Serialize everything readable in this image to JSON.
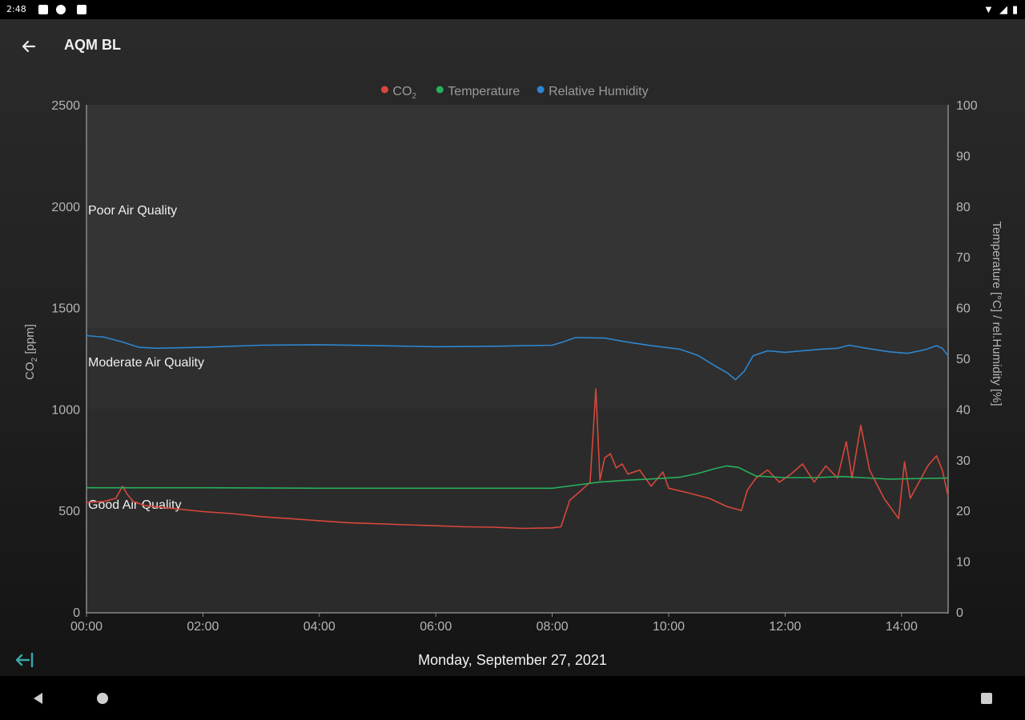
{
  "status_bar": {
    "time": "2:48"
  },
  "header": {
    "title": "AQM BL"
  },
  "footer": {
    "date": "Monday, September 27, 2021"
  },
  "chart_data": {
    "type": "line",
    "title": "",
    "legend": [
      {
        "name": "CO",
        "sub": "2",
        "color": "#d7473b"
      },
      {
        "name": "Temperature",
        "color": "#27b05b"
      },
      {
        "name": "Relative Humidity",
        "color": "#2e86d0"
      }
    ],
    "legend_position": "top-center",
    "xlabel": "",
    "x_ticks": [
      "00:00",
      "02:00",
      "04:00",
      "06:00",
      "08:00",
      "10:00",
      "12:00",
      "14:00"
    ],
    "xlim": [
      0,
      14.8
    ],
    "y_left": {
      "label": "CO",
      "label_sub": "2",
      "label_suffix": " [ppm]",
      "lim": [
        0,
        2500
      ],
      "ticks": [
        0,
        500,
        1000,
        1500,
        2000,
        2500
      ]
    },
    "y_right": {
      "label": "Temperature [°C] / rel.Humidity [%]",
      "lim": [
        0,
        100
      ],
      "ticks": [
        0,
        10,
        20,
        30,
        40,
        50,
        60,
        70,
        80,
        90,
        100
      ]
    },
    "zones": [
      {
        "label": "Good Air Quality",
        "from": 0,
        "to": 1000,
        "fill": "#2b2b2b"
      },
      {
        "label": "Moderate Air Quality",
        "from": 1000,
        "to": 1400,
        "fill": "#2f2f2f"
      },
      {
        "label": "Poor Air Quality",
        "from": 1400,
        "to": 2500,
        "fill": "#343434"
      }
    ],
    "grid": false,
    "series": [
      {
        "name": "CO2",
        "axis": "left",
        "color": "#d7473b",
        "points": [
          [
            0,
            540
          ],
          [
            0.3,
            545
          ],
          [
            0.5,
            560
          ],
          [
            0.58,
            600
          ],
          [
            0.62,
            620
          ],
          [
            0.7,
            580
          ],
          [
            0.8,
            545
          ],
          [
            1.0,
            525
          ],
          [
            1.5,
            510
          ],
          [
            2,
            495
          ],
          [
            2.5,
            485
          ],
          [
            3,
            470
          ],
          [
            3.5,
            460
          ],
          [
            4,
            450
          ],
          [
            4.5,
            440
          ],
          [
            5,
            435
          ],
          [
            5.5,
            430
          ],
          [
            6,
            425
          ],
          [
            6.5,
            420
          ],
          [
            7,
            418
          ],
          [
            7.5,
            412
          ],
          [
            8,
            415
          ],
          [
            8.15,
            420
          ],
          [
            8.3,
            550
          ],
          [
            8.5,
            600
          ],
          [
            8.65,
            640
          ],
          [
            8.75,
            1100
          ],
          [
            8.82,
            650
          ],
          [
            8.9,
            760
          ],
          [
            9.0,
            780
          ],
          [
            9.1,
            710
          ],
          [
            9.2,
            730
          ],
          [
            9.3,
            680
          ],
          [
            9.5,
            700
          ],
          [
            9.7,
            620
          ],
          [
            9.9,
            690
          ],
          [
            10.0,
            610
          ],
          [
            10.3,
            590
          ],
          [
            10.7,
            560
          ],
          [
            11.0,
            520
          ],
          [
            11.25,
            500
          ],
          [
            11.35,
            600
          ],
          [
            11.5,
            660
          ],
          [
            11.7,
            700
          ],
          [
            11.9,
            640
          ],
          [
            12.1,
            680
          ],
          [
            12.3,
            730
          ],
          [
            12.5,
            640
          ],
          [
            12.7,
            720
          ],
          [
            12.9,
            660
          ],
          [
            13.05,
            840
          ],
          [
            13.15,
            660
          ],
          [
            13.3,
            920
          ],
          [
            13.45,
            700
          ],
          [
            13.7,
            560
          ],
          [
            13.95,
            460
          ],
          [
            14.05,
            740
          ],
          [
            14.15,
            560
          ],
          [
            14.45,
            720
          ],
          [
            14.6,
            770
          ],
          [
            14.7,
            700
          ],
          [
            14.8,
            570
          ]
        ]
      },
      {
        "name": "Temperature",
        "axis": "right",
        "color": "#27b05b",
        "points": [
          [
            0,
            24.5
          ],
          [
            2,
            24.5
          ],
          [
            4,
            24.4
          ],
          [
            6,
            24.4
          ],
          [
            8,
            24.4
          ],
          [
            8.4,
            25.0
          ],
          [
            8.8,
            25.6
          ],
          [
            9.3,
            26.0
          ],
          [
            9.8,
            26.3
          ],
          [
            10.2,
            26.6
          ],
          [
            10.5,
            27.3
          ],
          [
            10.8,
            28.3
          ],
          [
            11.0,
            28.8
          ],
          [
            11.2,
            28.5
          ],
          [
            11.5,
            26.8
          ],
          [
            12,
            26.5
          ],
          [
            12.5,
            26.5
          ],
          [
            13,
            26.7
          ],
          [
            13.3,
            26.5
          ],
          [
            13.8,
            26.2
          ],
          [
            14.2,
            26.3
          ],
          [
            14.8,
            26.4
          ]
        ]
      },
      {
        "name": "Relative Humidity",
        "axis": "right",
        "color": "#2e86d0",
        "points": [
          [
            0,
            54.5
          ],
          [
            0.3,
            54.2
          ],
          [
            0.6,
            53.3
          ],
          [
            0.9,
            52.2
          ],
          [
            1.2,
            52.0
          ],
          [
            2,
            52.2
          ],
          [
            3,
            52.6
          ],
          [
            4,
            52.7
          ],
          [
            5,
            52.5
          ],
          [
            6,
            52.3
          ],
          [
            7,
            52.4
          ],
          [
            8,
            52.6
          ],
          [
            8.2,
            53.3
          ],
          [
            8.4,
            54.1
          ],
          [
            8.9,
            54.0
          ],
          [
            9.3,
            53.2
          ],
          [
            9.7,
            52.5
          ],
          [
            10.2,
            51.8
          ],
          [
            10.5,
            50.6
          ],
          [
            10.8,
            48.5
          ],
          [
            11.0,
            47.2
          ],
          [
            11.15,
            45.8
          ],
          [
            11.3,
            47.5
          ],
          [
            11.45,
            50.5
          ],
          [
            11.7,
            51.5
          ],
          [
            12,
            51.2
          ],
          [
            12.3,
            51.5
          ],
          [
            12.6,
            51.8
          ],
          [
            12.9,
            52.0
          ],
          [
            13.1,
            52.6
          ],
          [
            13.3,
            52.2
          ],
          [
            13.5,
            51.8
          ],
          [
            13.8,
            51.3
          ],
          [
            14.1,
            51.0
          ],
          [
            14.4,
            51.7
          ],
          [
            14.6,
            52.5
          ],
          [
            14.7,
            52.0
          ],
          [
            14.8,
            50.5
          ]
        ]
      }
    ]
  }
}
